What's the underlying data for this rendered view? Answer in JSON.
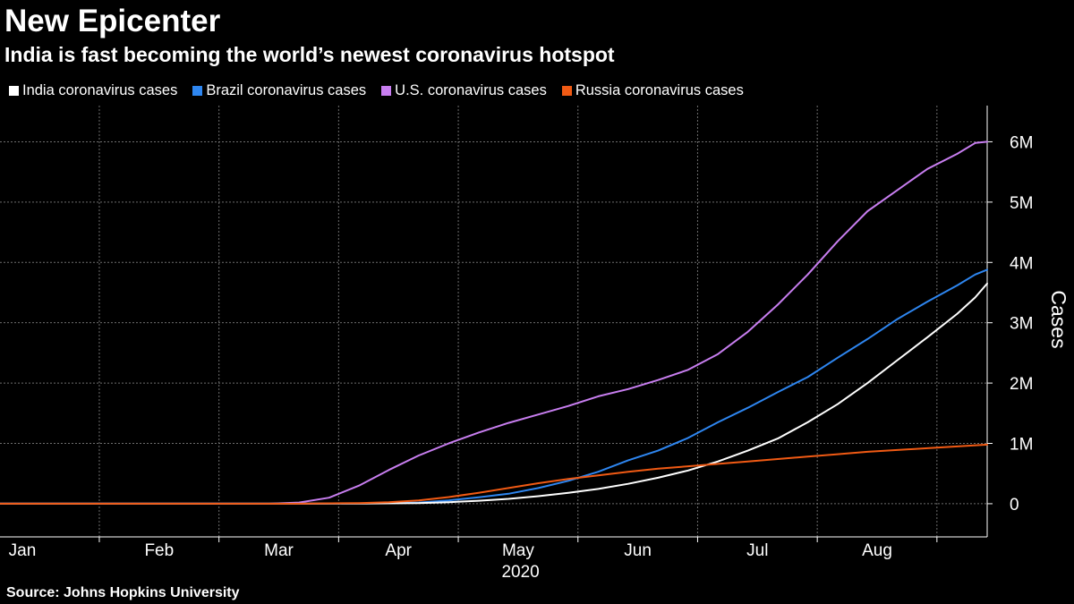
{
  "title": "New Epicenter",
  "subtitle": "India is fast becoming the world’s newest coronavirus hotspot",
  "source": "Source: Johns Hopkins University",
  "chart_data": {
    "type": "line",
    "title": "New Epicenter",
    "subtitle": "India is fast becoming the world’s newest coronavirus hotspot",
    "xlabel": "2020",
    "ylabel": "Cases",
    "x_tick_labels": [
      "Jan",
      "Feb",
      "Mar",
      "Apr",
      "May",
      "Jun",
      "Jul",
      "Aug"
    ],
    "x_year_label": "2020",
    "y_ticks": [
      0,
      1000000,
      2000000,
      3000000,
      4000000,
      5000000,
      6000000
    ],
    "y_tick_labels": [
      "0",
      "1M",
      "2M",
      "3M",
      "4M",
      "5M",
      "6M"
    ],
    "ylim": [
      -550000,
      6600000
    ],
    "xlim": [
      -0.5,
      7.75
    ],
    "grid": true,
    "legend_position": "top-left",
    "x_unit": "months since Jan 22, 2020",
    "series": [
      {
        "name": "India coronavirus cases",
        "color": "#ffffff",
        "points": [
          [
            -0.5,
            0
          ],
          [
            1.0,
            0
          ],
          [
            2.0,
            0
          ],
          [
            2.5,
            3000
          ],
          [
            3.0,
            10000
          ],
          [
            3.25,
            25000
          ],
          [
            3.5,
            50000
          ],
          [
            3.75,
            80000
          ],
          [
            4.0,
            125000
          ],
          [
            4.25,
            180000
          ],
          [
            4.5,
            245000
          ],
          [
            4.75,
            330000
          ],
          [
            5.0,
            430000
          ],
          [
            5.25,
            550000
          ],
          [
            5.5,
            700000
          ],
          [
            5.75,
            880000
          ],
          [
            6.0,
            1080000
          ],
          [
            6.25,
            1350000
          ],
          [
            6.5,
            1650000
          ],
          [
            6.75,
            2000000
          ],
          [
            7.0,
            2380000
          ],
          [
            7.25,
            2760000
          ],
          [
            7.5,
            3150000
          ],
          [
            7.65,
            3420000
          ],
          [
            7.75,
            3650000
          ]
        ]
      },
      {
        "name": "Brazil coronavirus cases",
        "color": "#2e86f0",
        "points": [
          [
            -0.5,
            0
          ],
          [
            1.0,
            0
          ],
          [
            2.0,
            0
          ],
          [
            2.5,
            5000
          ],
          [
            3.0,
            20000
          ],
          [
            3.25,
            55000
          ],
          [
            3.5,
            105000
          ],
          [
            3.75,
            165000
          ],
          [
            4.0,
            260000
          ],
          [
            4.25,
            380000
          ],
          [
            4.5,
            530000
          ],
          [
            4.75,
            720000
          ],
          [
            5.0,
            880000
          ],
          [
            5.25,
            1090000
          ],
          [
            5.5,
            1350000
          ],
          [
            5.75,
            1590000
          ],
          [
            6.0,
            1850000
          ],
          [
            6.25,
            2100000
          ],
          [
            6.5,
            2420000
          ],
          [
            6.75,
            2730000
          ],
          [
            7.0,
            3060000
          ],
          [
            7.25,
            3350000
          ],
          [
            7.5,
            3620000
          ],
          [
            7.65,
            3800000
          ],
          [
            7.75,
            3880000
          ]
        ]
      },
      {
        "name": "U.S. coronavirus cases",
        "color": "#c87ef0",
        "points": [
          [
            -0.5,
            0
          ],
          [
            1.0,
            0
          ],
          [
            1.75,
            0
          ],
          [
            2.0,
            20000
          ],
          [
            2.25,
            100000
          ],
          [
            2.5,
            300000
          ],
          [
            2.75,
            560000
          ],
          [
            3.0,
            800000
          ],
          [
            3.25,
            1000000
          ],
          [
            3.5,
            1180000
          ],
          [
            3.75,
            1340000
          ],
          [
            4.0,
            1480000
          ],
          [
            4.25,
            1620000
          ],
          [
            4.5,
            1780000
          ],
          [
            4.75,
            1900000
          ],
          [
            5.0,
            2050000
          ],
          [
            5.25,
            2220000
          ],
          [
            5.5,
            2480000
          ],
          [
            5.75,
            2850000
          ],
          [
            6.0,
            3300000
          ],
          [
            6.25,
            3800000
          ],
          [
            6.5,
            4350000
          ],
          [
            6.75,
            4850000
          ],
          [
            7.0,
            5200000
          ],
          [
            7.25,
            5550000
          ],
          [
            7.5,
            5800000
          ],
          [
            7.65,
            5980000
          ],
          [
            7.75,
            6000000
          ]
        ]
      },
      {
        "name": "Russia coronavirus cases",
        "color": "#f05a14",
        "points": [
          [
            -0.5,
            0
          ],
          [
            1.0,
            0
          ],
          [
            2.0,
            0
          ],
          [
            2.5,
            10000
          ],
          [
            2.75,
            25000
          ],
          [
            3.0,
            55000
          ],
          [
            3.25,
            110000
          ],
          [
            3.5,
            180000
          ],
          [
            3.75,
            260000
          ],
          [
            4.0,
            340000
          ],
          [
            4.25,
            410000
          ],
          [
            4.5,
            470000
          ],
          [
            4.75,
            530000
          ],
          [
            5.0,
            580000
          ],
          [
            5.25,
            620000
          ],
          [
            5.5,
            660000
          ],
          [
            5.75,
            700000
          ],
          [
            6.0,
            740000
          ],
          [
            6.25,
            780000
          ],
          [
            6.5,
            820000
          ],
          [
            6.75,
            860000
          ],
          [
            7.0,
            890000
          ],
          [
            7.25,
            920000
          ],
          [
            7.5,
            950000
          ],
          [
            7.75,
            980000
          ]
        ]
      }
    ]
  }
}
